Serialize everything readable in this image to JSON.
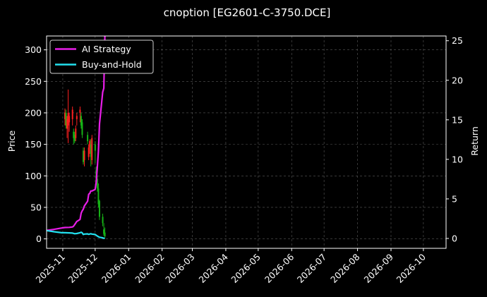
{
  "chart_data": {
    "type": "line",
    "title": "cnoption [EG2601-C-3750.DCE]",
    "ylabel": "Price",
    "y2label": "Return",
    "ylim": [
      -15,
      322
    ],
    "y2lim": [
      -1.25,
      25.6
    ],
    "yticks": [
      0,
      50,
      100,
      150,
      200,
      250,
      300
    ],
    "y2ticks": [
      0,
      5,
      10,
      15,
      20,
      25
    ],
    "xlim": [
      "2025-10-17",
      "2026-10-22"
    ],
    "xticks": [
      "2025-11",
      "2025-12",
      "2026-01",
      "2026-02",
      "2026-03",
      "2026-04",
      "2026-05",
      "2026-06",
      "2026-07",
      "2026-08",
      "2026-09",
      "2026-10"
    ],
    "grid": true,
    "legend_position": "top-left",
    "colors": {
      "background": "#000000",
      "up": "#ff2020",
      "down": "#16b316",
      "strategy": "#e81ee8",
      "buyhold": "#22e0ee",
      "grid": "#5a5a5a",
      "frame": "#ffffff"
    },
    "candles": [
      {
        "d": "2025-11-03",
        "o": 190,
        "h": 207,
        "l": 180,
        "c": 200
      },
      {
        "d": "2025-11-04",
        "o": 200,
        "h": 205,
        "l": 175,
        "c": 180
      },
      {
        "d": "2025-11-05",
        "o": 175,
        "h": 195,
        "l": 160,
        "c": 190
      },
      {
        "d": "2025-11-06",
        "o": 180,
        "h": 237,
        "l": 152,
        "c": 200
      },
      {
        "d": "2025-11-07",
        "o": 185,
        "h": 200,
        "l": 170,
        "c": 195
      },
      {
        "d": "2025-11-10",
        "o": 190,
        "h": 210,
        "l": 180,
        "c": 205
      },
      {
        "d": "2025-11-11",
        "o": 170,
        "h": 175,
        "l": 150,
        "c": 160
      },
      {
        "d": "2025-11-12",
        "o": 165,
        "h": 170,
        "l": 152,
        "c": 155
      },
      {
        "d": "2025-11-13",
        "o": 160,
        "h": 180,
        "l": 155,
        "c": 175
      },
      {
        "d": "2025-11-14",
        "o": 190,
        "h": 200,
        "l": 180,
        "c": 195
      },
      {
        "d": "2025-11-17",
        "o": 200,
        "h": 210,
        "l": 185,
        "c": 205
      },
      {
        "d": "2025-11-18",
        "o": 195,
        "h": 200,
        "l": 175,
        "c": 180
      },
      {
        "d": "2025-11-19",
        "o": 185,
        "h": 190,
        "l": 160,
        "c": 165
      },
      {
        "d": "2025-11-20",
        "o": 140,
        "h": 145,
        "l": 118,
        "c": 122
      },
      {
        "d": "2025-11-21",
        "o": 125,
        "h": 145,
        "l": 115,
        "c": 140
      },
      {
        "d": "2025-11-24",
        "o": 165,
        "h": 170,
        "l": 150,
        "c": 155
      },
      {
        "d": "2025-11-25",
        "o": 130,
        "h": 150,
        "l": 125,
        "c": 145
      },
      {
        "d": "2025-11-26",
        "o": 145,
        "h": 158,
        "l": 135,
        "c": 155
      },
      {
        "d": "2025-11-27",
        "o": 150,
        "h": 158,
        "l": 115,
        "c": 130
      },
      {
        "d": "2025-11-28",
        "o": 125,
        "h": 165,
        "l": 118,
        "c": 160
      },
      {
        "d": "2025-12-01",
        "o": 150,
        "h": 155,
        "l": 120,
        "c": 140
      },
      {
        "d": "2025-12-02",
        "o": 110,
        "h": 115,
        "l": 90,
        "c": 95
      },
      {
        "d": "2025-12-03",
        "o": 95,
        "h": 100,
        "l": 75,
        "c": 80
      },
      {
        "d": "2025-12-04",
        "o": 80,
        "h": 88,
        "l": 50,
        "c": 55
      },
      {
        "d": "2025-12-05",
        "o": 60,
        "h": 62,
        "l": 30,
        "c": 35
      },
      {
        "d": "2025-12-08",
        "o": 35,
        "h": 40,
        "l": 20,
        "c": 25
      },
      {
        "d": "2025-12-09",
        "o": 15,
        "h": 25,
        "l": 5,
        "c": 8
      },
      {
        "d": "2025-12-10",
        "o": 10,
        "h": 18,
        "l": 2,
        "c": 4
      }
    ],
    "series": [
      {
        "name": "AI Strategy",
        "axis": "right",
        "points": [
          [
            "2025-10-17",
            1.02
          ],
          [
            "2025-10-24",
            1.15
          ],
          [
            "2025-10-31",
            1.32
          ],
          [
            "2025-11-03",
            1.38
          ],
          [
            "2025-11-07",
            1.4
          ],
          [
            "2025-11-10",
            1.45
          ],
          [
            "2025-11-11",
            1.55
          ],
          [
            "2025-11-12",
            1.75
          ],
          [
            "2025-11-13",
            1.95
          ],
          [
            "2025-11-14",
            2.15
          ],
          [
            "2025-11-17",
            2.4
          ],
          [
            "2025-11-18",
            3.2
          ],
          [
            "2025-11-19",
            3.5
          ],
          [
            "2025-11-20",
            3.7
          ],
          [
            "2025-11-21",
            4.1
          ],
          [
            "2025-11-24",
            4.7
          ],
          [
            "2025-11-25",
            5.6
          ],
          [
            "2025-11-26",
            5.7
          ],
          [
            "2025-11-27",
            6.0
          ],
          [
            "2025-11-28",
            6.0
          ],
          [
            "2025-12-01",
            6.2
          ],
          [
            "2025-12-02",
            7.2
          ],
          [
            "2025-12-03",
            9.0
          ],
          [
            "2025-12-04",
            11.0
          ],
          [
            "2025-12-05",
            14.5
          ],
          [
            "2025-12-08",
            18.5
          ],
          [
            "2025-12-09",
            19.0
          ],
          [
            "2025-12-10",
            25.6
          ]
        ]
      },
      {
        "name": "Buy-and-Hold",
        "axis": "right",
        "points": [
          [
            "2025-10-17",
            1.0
          ],
          [
            "2025-10-24",
            0.85
          ],
          [
            "2025-10-31",
            0.72
          ],
          [
            "2025-11-03",
            0.72
          ],
          [
            "2025-11-07",
            0.7
          ],
          [
            "2025-11-10",
            0.68
          ],
          [
            "2025-11-12",
            0.6
          ],
          [
            "2025-11-14",
            0.62
          ],
          [
            "2025-11-17",
            0.72
          ],
          [
            "2025-11-18",
            0.78
          ],
          [
            "2025-11-19",
            0.7
          ],
          [
            "2025-11-20",
            0.5
          ],
          [
            "2025-11-21",
            0.55
          ],
          [
            "2025-11-24",
            0.58
          ],
          [
            "2025-11-25",
            0.52
          ],
          [
            "2025-11-26",
            0.56
          ],
          [
            "2025-11-27",
            0.6
          ],
          [
            "2025-11-28",
            0.55
          ],
          [
            "2025-12-01",
            0.5
          ],
          [
            "2025-12-02",
            0.4
          ],
          [
            "2025-12-03",
            0.3
          ],
          [
            "2025-12-04",
            0.22
          ],
          [
            "2025-12-05",
            0.15
          ],
          [
            "2025-12-08",
            0.08
          ],
          [
            "2025-12-09",
            0.03
          ],
          [
            "2025-12-10",
            0.01
          ]
        ]
      }
    ]
  }
}
